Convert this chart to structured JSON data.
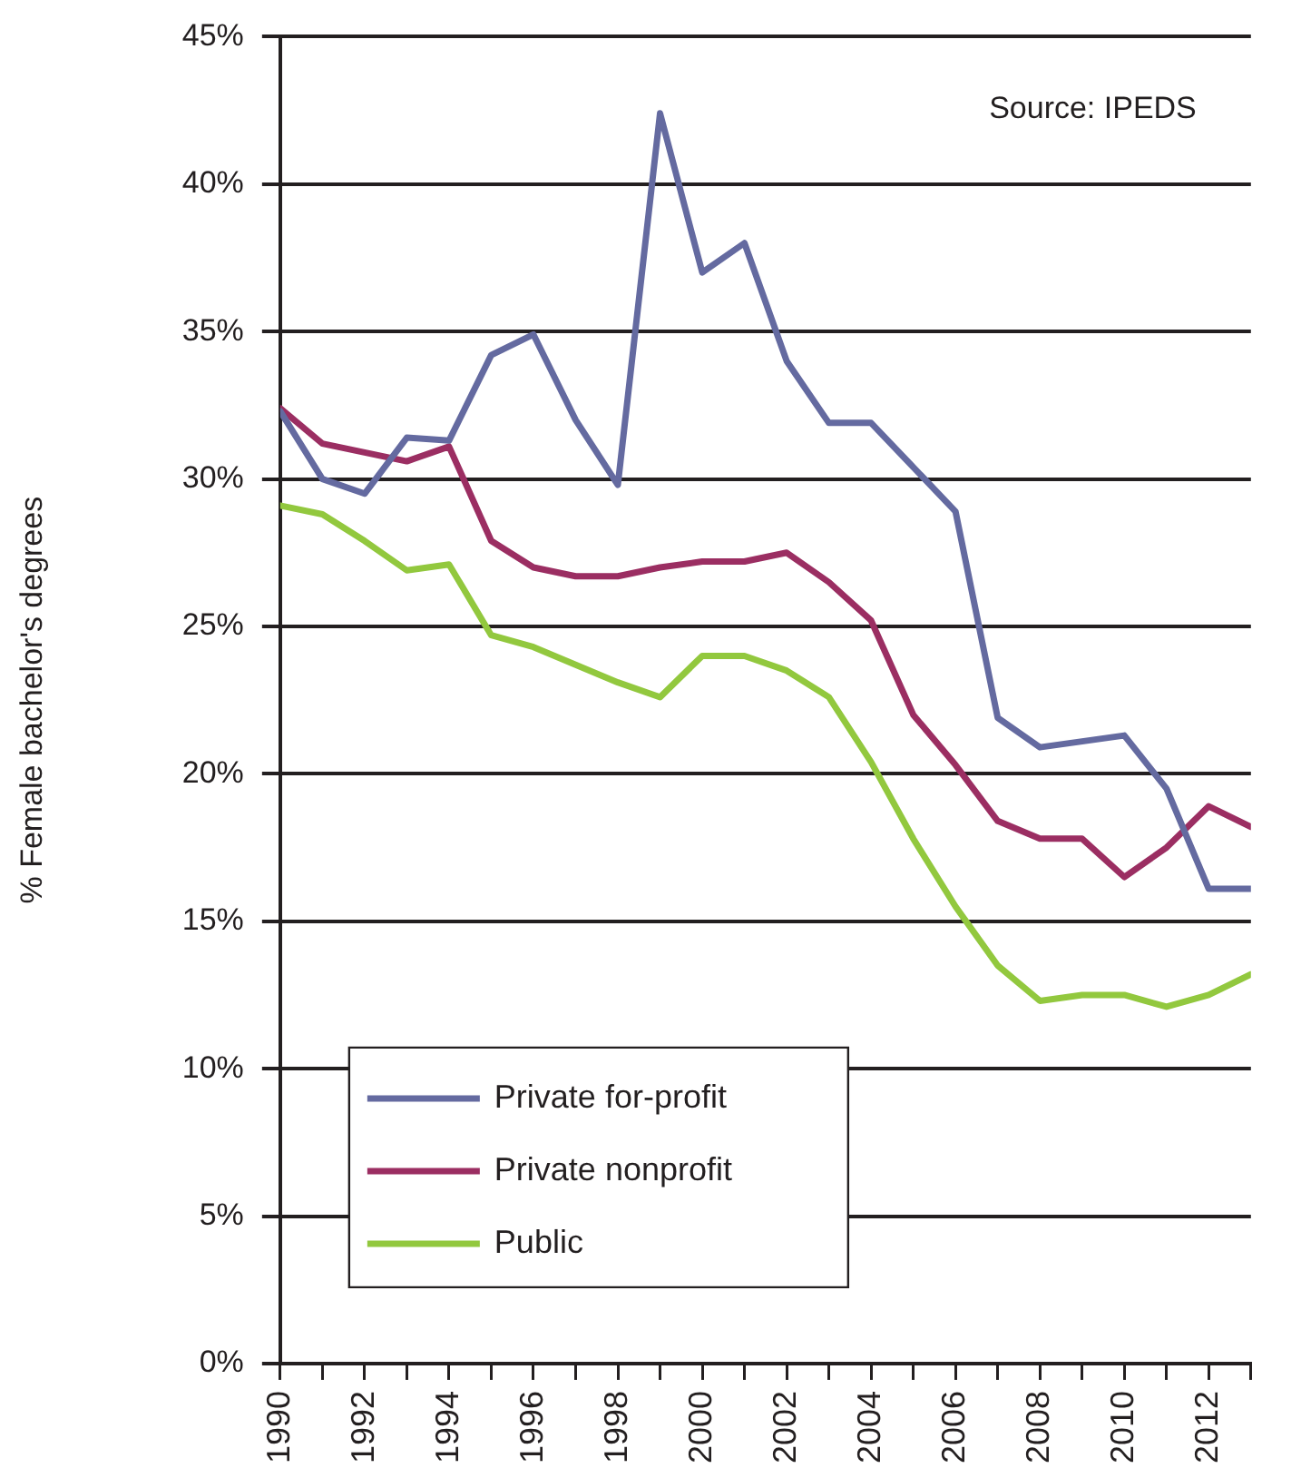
{
  "chart_data": {
    "type": "line",
    "ylabel": "% Female bachelor's degrees",
    "annotations": [
      "Source: IPEDS"
    ],
    "x": [
      1990,
      1991,
      1992,
      1993,
      1994,
      1995,
      1996,
      1997,
      1998,
      1999,
      2000,
      2001,
      2002,
      2003,
      2004,
      2005,
      2006,
      2007,
      2008,
      2009,
      2010,
      2011,
      2012,
      2013
    ],
    "xlim": [
      1990,
      2013
    ],
    "xticks": [
      1990,
      {
        "value": 1991,
        "label": null
      },
      1992,
      {
        "value": 1993,
        "label": null
      },
      1994,
      {
        "value": 1995,
        "label": null
      },
      1996,
      {
        "value": 1997,
        "label": null
      },
      1998,
      {
        "value": 1999,
        "label": null
      },
      2000,
      {
        "value": 2001,
        "label": null
      },
      2002,
      {
        "value": 2003,
        "label": null
      },
      2004,
      {
        "value": 2005,
        "label": null
      },
      2006,
      {
        "value": 2007,
        "label": null
      },
      2008,
      {
        "value": 2009,
        "label": null
      },
      2010,
      {
        "value": 2011,
        "label": null
      },
      2012,
      {
        "value": 2013,
        "label": null
      }
    ],
    "ylim": [
      0,
      45
    ],
    "yticks": [
      {
        "value": 0,
        "label": "0%"
      },
      {
        "value": 5,
        "label": "5%"
      },
      {
        "value": 10,
        "label": "10%"
      },
      {
        "value": 15,
        "label": "15%"
      },
      {
        "value": 20,
        "label": "20%"
      },
      {
        "value": 25,
        "label": "25%"
      },
      {
        "value": 30,
        "label": "30%"
      },
      {
        "value": 35,
        "label": "35%"
      },
      {
        "value": 40,
        "label": "40%"
      },
      {
        "value": 45,
        "label": "45%"
      }
    ],
    "grid": "y",
    "legend": "bottom left",
    "marker": "none",
    "line_style": "solid",
    "series": [
      {
        "name": "Private for-profit",
        "color": "#646aa0",
        "values": [
          32.3,
          30.0,
          29.5,
          31.4,
          31.3,
          34.2,
          34.9,
          32.0,
          29.8,
          42.4,
          37.0,
          38.0,
          34.0,
          31.9,
          31.9,
          30.4,
          28.9,
          21.9,
          20.9,
          21.1,
          21.3,
          19.5,
          16.1,
          16.1
        ]
      },
      {
        "name": "Private nonprofit",
        "color": "#9b2e62",
        "values": [
          32.4,
          31.2,
          30.9,
          30.6,
          31.1,
          27.9,
          27.0,
          26.7,
          26.7,
          27.0,
          27.2,
          27.2,
          27.5,
          26.5,
          25.2,
          22.0,
          20.3,
          18.4,
          17.8,
          17.8,
          16.5,
          17.5,
          18.9,
          18.2
        ]
      },
      {
        "name": "Public",
        "color": "#92c83e",
        "values": [
          29.1,
          28.8,
          27.9,
          26.9,
          27.1,
          24.7,
          24.3,
          23.7,
          23.1,
          22.6,
          24.0,
          24.0,
          23.5,
          22.6,
          20.4,
          17.8,
          15.5,
          13.5,
          12.3,
          12.5,
          12.5,
          12.1,
          12.5,
          13.2
        ]
      }
    ]
  }
}
